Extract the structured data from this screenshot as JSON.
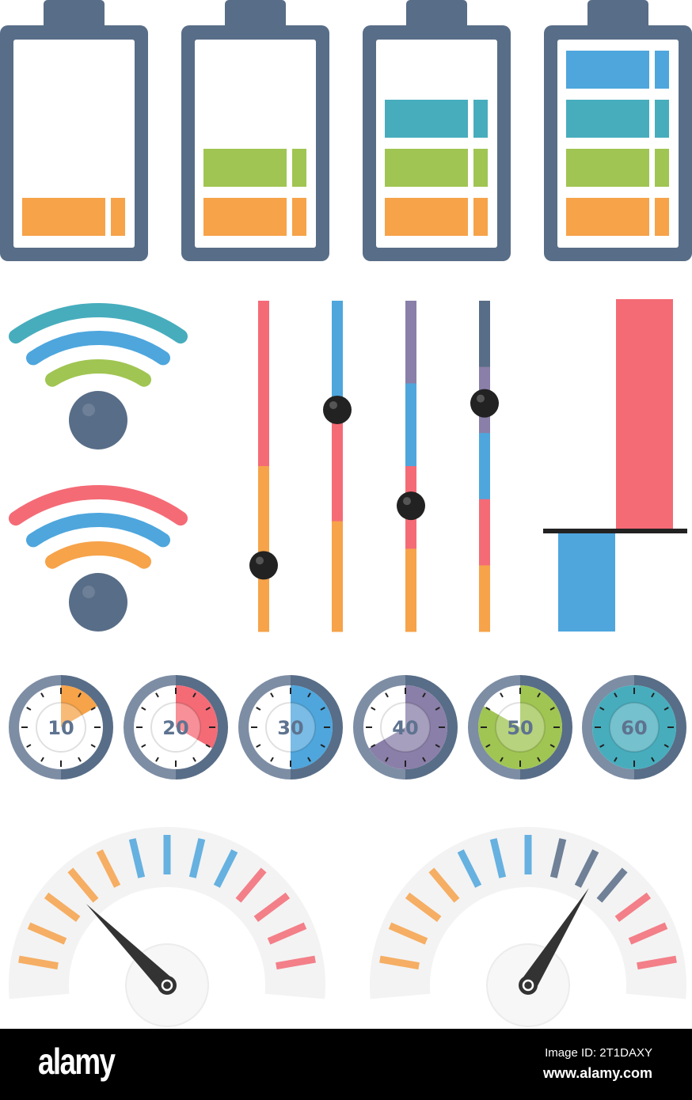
{
  "colors": {
    "slate": "#586d87",
    "slate_light": "#7d8da4",
    "orange": "#f6a34a",
    "green": "#a0c552",
    "teal": "#47adbd",
    "blue": "#4ea6dd",
    "red": "#f46b76",
    "purple": "#8a7fa8",
    "knob": "#222222"
  },
  "batteries": [
    {
      "level": 1,
      "of": 4
    },
    {
      "level": 2,
      "of": 4
    },
    {
      "level": 3,
      "of": 4
    },
    {
      "level": 4,
      "of": 4
    }
  ],
  "wifi": [
    {
      "arcs": [
        "teal",
        "blue",
        "green"
      ]
    },
    {
      "arcs": [
        "red",
        "blue",
        "orange"
      ]
    }
  ],
  "sliders": [
    {
      "segments": [
        "red",
        "orange"
      ],
      "knob_level": 0.2
    },
    {
      "segments": [
        "blue",
        "red",
        "orange"
      ],
      "knob_level": 0.67
    },
    {
      "segments": [
        "purple",
        "blue",
        "red",
        "orange"
      ],
      "knob_level": 0.38
    },
    {
      "segments": [
        "slate",
        "purple",
        "blue",
        "red",
        "orange"
      ],
      "knob_level": 0.69
    }
  ],
  "timers": [
    {
      "label": "10",
      "value": 10,
      "color": "orange"
    },
    {
      "label": "20",
      "value": 20,
      "color": "red"
    },
    {
      "label": "30",
      "value": 30,
      "color": "blue"
    },
    {
      "label": "40",
      "value": 40,
      "color": "purple"
    },
    {
      "label": "50",
      "value": 50,
      "color": "green"
    },
    {
      "label": "60",
      "value": 60,
      "color": "teal"
    }
  ],
  "gauges": [
    {
      "ticks": [
        "orange",
        "orange",
        "orange",
        "orange",
        "orange",
        "blue",
        "blue",
        "blue",
        "blue",
        "red",
        "red",
        "red",
        "red"
      ],
      "needle_level": 0.22
    },
    {
      "ticks": [
        "orange",
        "orange",
        "orange",
        "orange",
        "blue",
        "blue",
        "blue",
        "slate",
        "slate",
        "slate",
        "red",
        "red",
        "red"
      ],
      "needle_level": 0.7
    }
  ],
  "footer": {
    "logo": "alamy",
    "image_id": "Image ID: 2T1DAXY",
    "site": "www.alamy.com"
  }
}
